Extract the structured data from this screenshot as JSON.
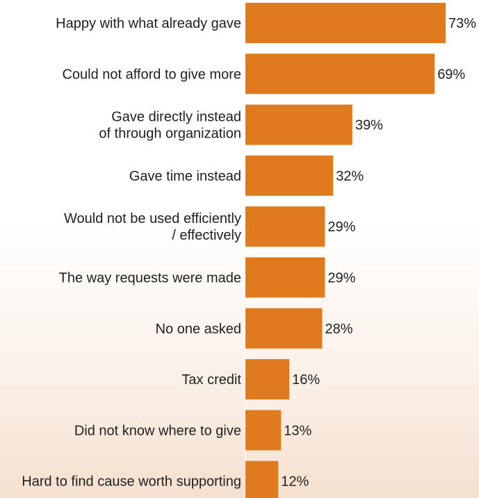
{
  "chart_data": {
    "type": "bar",
    "orientation": "horizontal",
    "categories": [
      "Happy with what already gave",
      "Could not afford to give more",
      "Gave directly instead\nof through organization",
      "Gave time instead",
      "Would not be used efficiently\n/ effectively",
      "The way requests were made",
      "No one asked",
      "Tax credit",
      "Did not know where to give",
      "Hard to find cause worth supporting"
    ],
    "values": [
      73,
      69,
      39,
      32,
      29,
      29,
      28,
      16,
      13,
      12
    ],
    "value_labels": [
      "73%",
      "69%",
      "39%",
      "32%",
      "29%",
      "29%",
      "28%",
      "16%",
      "13%",
      "12%"
    ],
    "title": "",
    "xlabel": "",
    "ylabel": "",
    "xlim": [
      0,
      73
    ],
    "grid": false,
    "legend": "none"
  },
  "colors": {
    "bar": "#e07a1f",
    "text": "#1e1e1e"
  }
}
